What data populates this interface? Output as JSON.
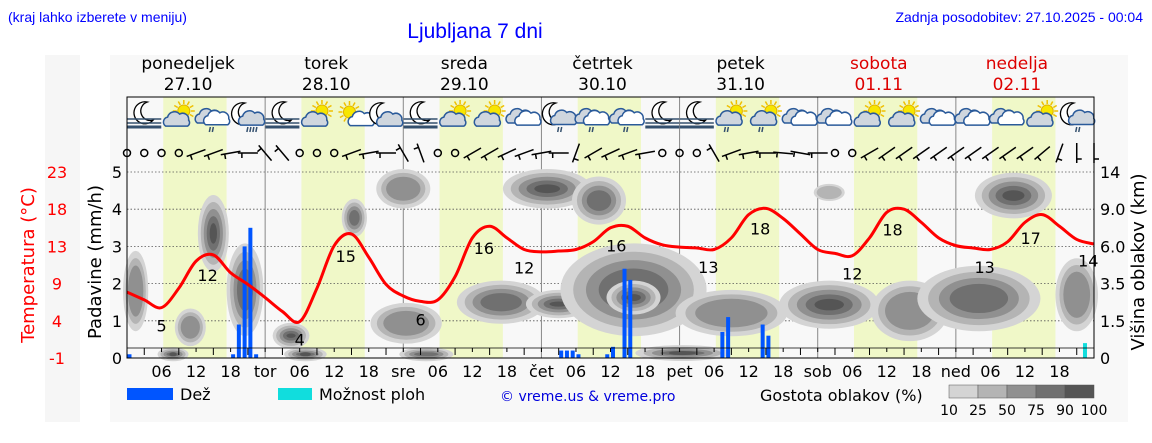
{
  "header": {
    "hint": "(kraj lahko izberete v meniju)",
    "title": "Ljubljana 7 dni",
    "updated": "Zadnja posodobitev: 27.10.2025 - 00:04"
  },
  "days": [
    {
      "name": "ponedeljek",
      "date": "27.10",
      "weekend": false
    },
    {
      "name": "torek",
      "date": "28.10",
      "weekend": false
    },
    {
      "name": "sreda",
      "date": "29.10",
      "weekend": false
    },
    {
      "name": "četrtek",
      "date": "30.10",
      "weekend": false
    },
    {
      "name": "petek",
      "date": "31.10",
      "weekend": false
    },
    {
      "name": "sobota",
      "date": "01.11",
      "weekend": true
    },
    {
      "name": "nedelja",
      "date": "02.11",
      "weekend": true
    }
  ],
  "legend": {
    "rain": "Dež",
    "showers": "Možnost ploh",
    "copyright": "© vreme.us & vreme.pro",
    "cloud_density": "Gostota oblakov (%)",
    "density_ticks": [
      "10",
      "25",
      "50",
      "75",
      "90",
      "100"
    ]
  },
  "colors": {
    "rain": "#0055ff",
    "showers": "#11dddd",
    "temperature": "#ff0000",
    "title": "#0000ff",
    "weekend": "#dd0000",
    "daylight": "#f0f8c8",
    "night": "#f8f8f8",
    "density": [
      "#d4d4d4",
      "#b4b4b4",
      "#909090",
      "#707070",
      "#555555"
    ]
  },
  "chart_data": {
    "type": "meteogram",
    "x_unit": "hours from 27.10 00:00",
    "x_range": [
      0,
      168
    ],
    "x_tick_labels": [
      "06",
      "12",
      "18",
      "tor",
      "06",
      "12",
      "18",
      "sre",
      "06",
      "12",
      "18",
      "čet",
      "06",
      "12",
      "18",
      "pet",
      "06",
      "12",
      "18",
      "sob",
      "06",
      "12",
      "18",
      "ned",
      "06",
      "12",
      "18"
    ],
    "left_axis": {
      "label": "Padavine (mm/h)",
      "ticks": [
        "0",
        "1",
        "2",
        "3",
        "4",
        "5"
      ],
      "range": [
        0,
        5
      ]
    },
    "temp_axis": {
      "label": "Temperatura (°C)",
      "ticks": [
        "-1",
        "4",
        "9",
        "13",
        "18",
        "23"
      ],
      "range": [
        -1,
        23
      ]
    },
    "right_axis": {
      "label": "Višina oblakov (km)",
      "ticks": [
        "0",
        "1.5",
        "3.5",
        "6.0",
        "9.0",
        "14"
      ]
    },
    "grid": true,
    "temperature": {
      "step_hours": 3,
      "values": [
        7.5,
        6.5,
        5.5,
        8,
        11.5,
        12.3,
        10,
        8.5,
        6.8,
        5,
        3.7,
        8,
        13.5,
        15,
        12,
        8.5,
        7,
        6.3,
        6.5,
        9.5,
        14.5,
        16,
        14.5,
        13,
        12.7,
        12.8,
        13,
        14,
        15.8,
        16,
        14.5,
        13.6,
        13.3,
        13.2,
        13,
        14.5,
        17.5,
        18.3,
        17,
        15,
        13,
        12.5,
        12.2,
        14.5,
        17.8,
        18.2,
        16.5,
        14.5,
        13.5,
        13.2,
        13,
        14,
        16.5,
        17.5,
        16,
        14.3,
        13.7
      ]
    },
    "temperature_labels": [
      {
        "h": 6,
        "text": "5",
        "pos": "below"
      },
      {
        "h": 14,
        "text": "12",
        "pos": "below"
      },
      {
        "h": 30,
        "text": "4",
        "pos": "below"
      },
      {
        "h": 38,
        "text": "15",
        "pos": "below"
      },
      {
        "h": 51,
        "text": "6",
        "pos": "below"
      },
      {
        "h": 62,
        "text": "16",
        "pos": "below"
      },
      {
        "h": 69,
        "text": "12",
        "pos": "below"
      },
      {
        "h": 85,
        "text": "16",
        "pos": "below"
      },
      {
        "h": 101,
        "text": "13",
        "pos": "below"
      },
      {
        "h": 110,
        "text": "18",
        "pos": "below"
      },
      {
        "h": 126,
        "text": "12",
        "pos": "below"
      },
      {
        "h": 133,
        "text": "18",
        "pos": "below"
      },
      {
        "h": 149,
        "text": "13",
        "pos": "below"
      },
      {
        "h": 157,
        "text": "17",
        "pos": "below"
      },
      {
        "h": 167,
        "text": "14",
        "pos": "below"
      }
    ],
    "rain": [
      {
        "h": 0,
        "mm": 0.1
      },
      {
        "h": 18,
        "mm": 0.1
      },
      {
        "h": 19,
        "mm": 0.9
      },
      {
        "h": 20,
        "mm": 3.0
      },
      {
        "h": 21,
        "mm": 3.5
      },
      {
        "h": 22,
        "mm": 0.1
      },
      {
        "h": 75,
        "mm": 0.2
      },
      {
        "h": 76,
        "mm": 0.2
      },
      {
        "h": 77,
        "mm": 0.2
      },
      {
        "h": 78,
        "mm": 0.1
      },
      {
        "h": 83,
        "mm": 0.1
      },
      {
        "h": 84,
        "mm": 0.3
      },
      {
        "h": 86,
        "mm": 2.4
      },
      {
        "h": 87,
        "mm": 2.1
      },
      {
        "h": 103,
        "mm": 0.7
      },
      {
        "h": 104,
        "mm": 1.1
      },
      {
        "h": 110,
        "mm": 0.9
      },
      {
        "h": 111,
        "mm": 0.6
      }
    ],
    "showers": [
      {
        "h": 166,
        "mm": 0.4
      }
    ],
    "clouds": [
      {
        "h0": 0,
        "h1": 3,
        "z0": 1.2,
        "z1": 5.5,
        "d": 50
      },
      {
        "h0": 6,
        "h1": 10,
        "z0": 0,
        "z1": 0.3,
        "d": 90
      },
      {
        "h0": 9,
        "h1": 13,
        "z0": 0.6,
        "z1": 2.0,
        "d": 50
      },
      {
        "h0": 13,
        "h1": 17,
        "z0": 4.5,
        "z1": 10.5,
        "d": 90
      },
      {
        "h0": 18,
        "h1": 23,
        "z0": 1.0,
        "z1": 6.0,
        "d": 75
      },
      {
        "h0": 26,
        "h1": 31,
        "z0": 0.5,
        "z1": 1.3,
        "d": 90
      },
      {
        "h0": 28,
        "h1": 34,
        "z0": 0,
        "z1": 0.3,
        "d": 90
      },
      {
        "h0": 38,
        "h1": 41,
        "z0": 7.0,
        "z1": 10.0,
        "d": 75
      },
      {
        "h0": 43,
        "h1": 54,
        "z0": 0.7,
        "z1": 2.3,
        "d": 50
      },
      {
        "h0": 44,
        "h1": 52,
        "z0": 9.5,
        "z1": 14,
        "d": 50
      },
      {
        "h0": 48,
        "h1": 56,
        "z0": 0,
        "z1": 0.3,
        "d": 75
      },
      {
        "h0": 58,
        "h1": 72,
        "z0": 1.5,
        "z1": 3.5,
        "d": 75
      },
      {
        "h0": 66,
        "h1": 80,
        "z0": 9.5,
        "z1": 14,
        "d": 90
      },
      {
        "h0": 70,
        "h1": 80,
        "z0": 1.8,
        "z1": 3.0,
        "d": 90
      },
      {
        "h0": 76,
        "h1": 100,
        "z0": 1.0,
        "z1": 6.0,
        "d": 75
      },
      {
        "h0": 78,
        "h1": 86,
        "z0": 8.0,
        "z1": 13.0,
        "d": 75
      },
      {
        "h0": 84,
        "h1": 92,
        "z0": 2.0,
        "z1": 3.5,
        "d": 90
      },
      {
        "h0": 89,
        "h1": 104,
        "z0": 0,
        "z1": 0.4,
        "d": 90
      },
      {
        "h0": 96,
        "h1": 114,
        "z0": 1.0,
        "z1": 3.0,
        "d": 50
      },
      {
        "h0": 114,
        "h1": 130,
        "z0": 1.3,
        "z1": 3.5,
        "d": 90
      },
      {
        "h0": 120,
        "h1": 124,
        "z0": 10.5,
        "z1": 12.0,
        "d": 25
      },
      {
        "h0": 130,
        "h1": 142,
        "z0": 0.8,
        "z1": 3.5,
        "d": 50
      },
      {
        "h0": 138,
        "h1": 158,
        "z0": 1.2,
        "z1": 4.5,
        "d": 75
      },
      {
        "h0": 148,
        "h1": 160,
        "z0": 8.5,
        "z1": 13.5,
        "d": 90
      },
      {
        "h0": 162,
        "h1": 168,
        "z0": 1.2,
        "z1": 5.0,
        "d": 50
      }
    ],
    "symbols": [
      "fog-night",
      "partly-cloudy",
      "cloudy-light-rain",
      "night-cloudy-rain",
      "fog-night",
      "partly-cloudy",
      "sun-small-cloud",
      "night-cloudy",
      "fog-night",
      "partly-cloudy",
      "partly-cloudy",
      "overcast",
      "night-cloudy-light-rain",
      "cloudy-light-rain",
      "cloudy-light-rain",
      "fog-night",
      "fog-night",
      "partly-cloudy-light-rain",
      "partly-cloudy-light-rain",
      "overcast",
      "overcast",
      "partly-cloudy",
      "partly-cloudy",
      "overcast",
      "overcast",
      "cloudy",
      "partly-cloudy",
      "night-cloudy-light-rain"
    ],
    "wind_step_hours": 3,
    "wind_dir": [
      null,
      null,
      null,
      null,
      250,
      250,
      260,
      270,
      320,
      320,
      null,
      null,
      null,
      250,
      260,
      270,
      330,
      340,
      null,
      null,
      240,
      240,
      245,
      250,
      260,
      270,
      200,
      240,
      245,
      250,
      260,
      null,
      null,
      null,
      330,
      250,
      260,
      270,
      275,
      280,
      270,
      null,
      null,
      240,
      235,
      235,
      235,
      235,
      235,
      235,
      235,
      235,
      235,
      230,
      200,
      180,
      180
    ]
  }
}
